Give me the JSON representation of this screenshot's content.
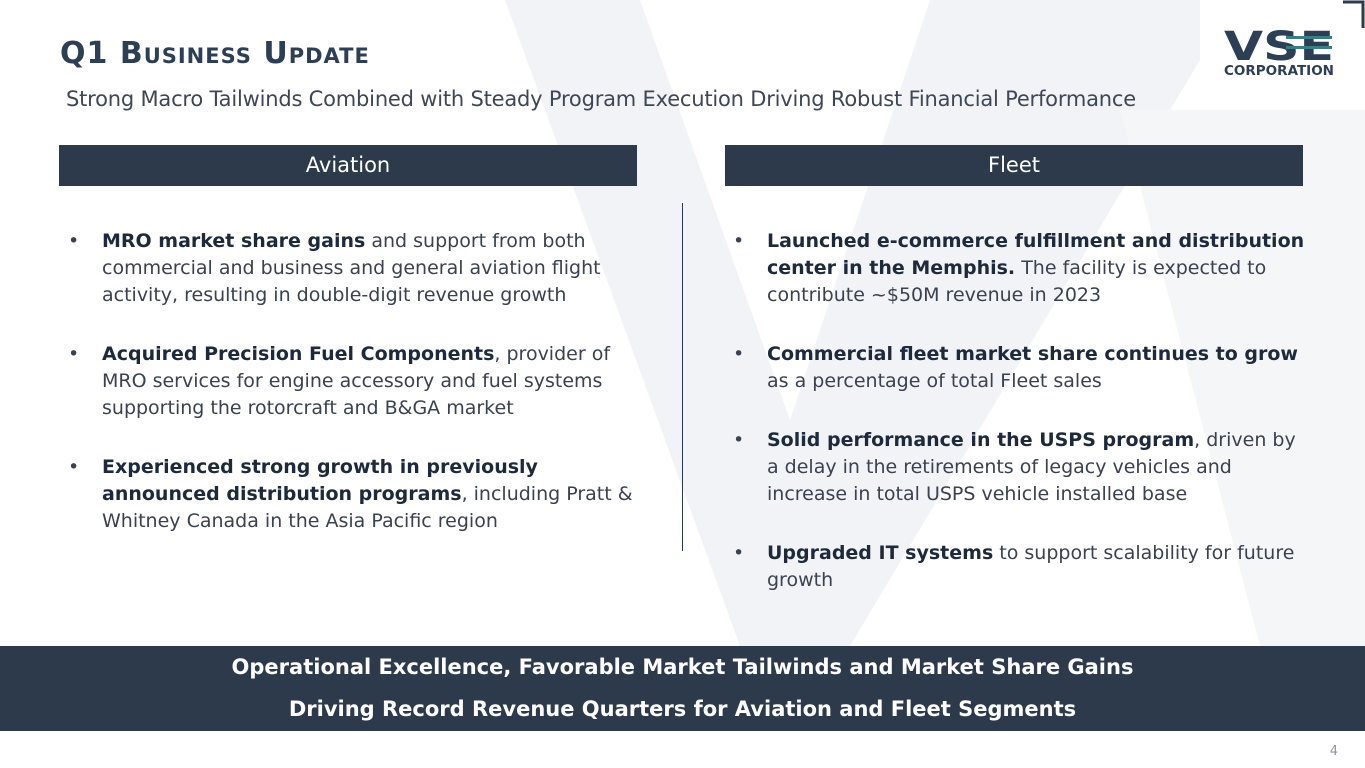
{
  "slide": {
    "title": "Q1 Business Update",
    "subtitle": "Strong Macro Tailwinds Combined with Steady Program Execution Driving Robust Financial Performance",
    "page_number": "4"
  },
  "logo": {
    "letters": "VSE",
    "word": "CORPORATION",
    "colors": {
      "navy": "#2d3f55",
      "teal": "#3a7f86"
    }
  },
  "aviation": {
    "header": "Aviation",
    "bullets": [
      {
        "bold": "MRO market share gains",
        "rest": " and support from both commercial and business and general aviation flight activity, resulting in double-digit revenue growth"
      },
      {
        "bold": "Acquired Precision Fuel Components",
        "rest": ", provider of MRO services for engine accessory and fuel systems supporting the rotorcraft and B&GA market"
      },
      {
        "bold": "Experienced strong growth in previously announced distribution programs",
        "rest": ", including Pratt & Whitney Canada in the Asia Pacific region"
      }
    ]
  },
  "fleet": {
    "header": "Fleet",
    "bullets": [
      {
        "bold": "Launched e-commerce fulfillment and distribution center in the Memphis.",
        "rest": " The facility is expected to contribute ~$50M revenue in 2023"
      },
      {
        "bold": "Commercial fleet market share continues to grow",
        "rest": " as a percentage of total Fleet sales"
      },
      {
        "bold": "Solid performance in the USPS program",
        "rest": ", driven by a delay in the retirements of legacy vehicles and increase in total USPS vehicle installed base"
      },
      {
        "bold": "Upgraded IT systems",
        "rest": " to support scalability for future growth"
      }
    ]
  },
  "banner": {
    "line1": "Operational Excellence, Favorable Market Tailwinds and Market Share Gains",
    "line2": "Driving Record Revenue Quarters for Aviation and Fleet Segments"
  },
  "bullet_glyph": "•",
  "colors": {
    "panel": "#2c3a4c",
    "text": "#3a4250",
    "background_shape": "#eef0f3"
  }
}
